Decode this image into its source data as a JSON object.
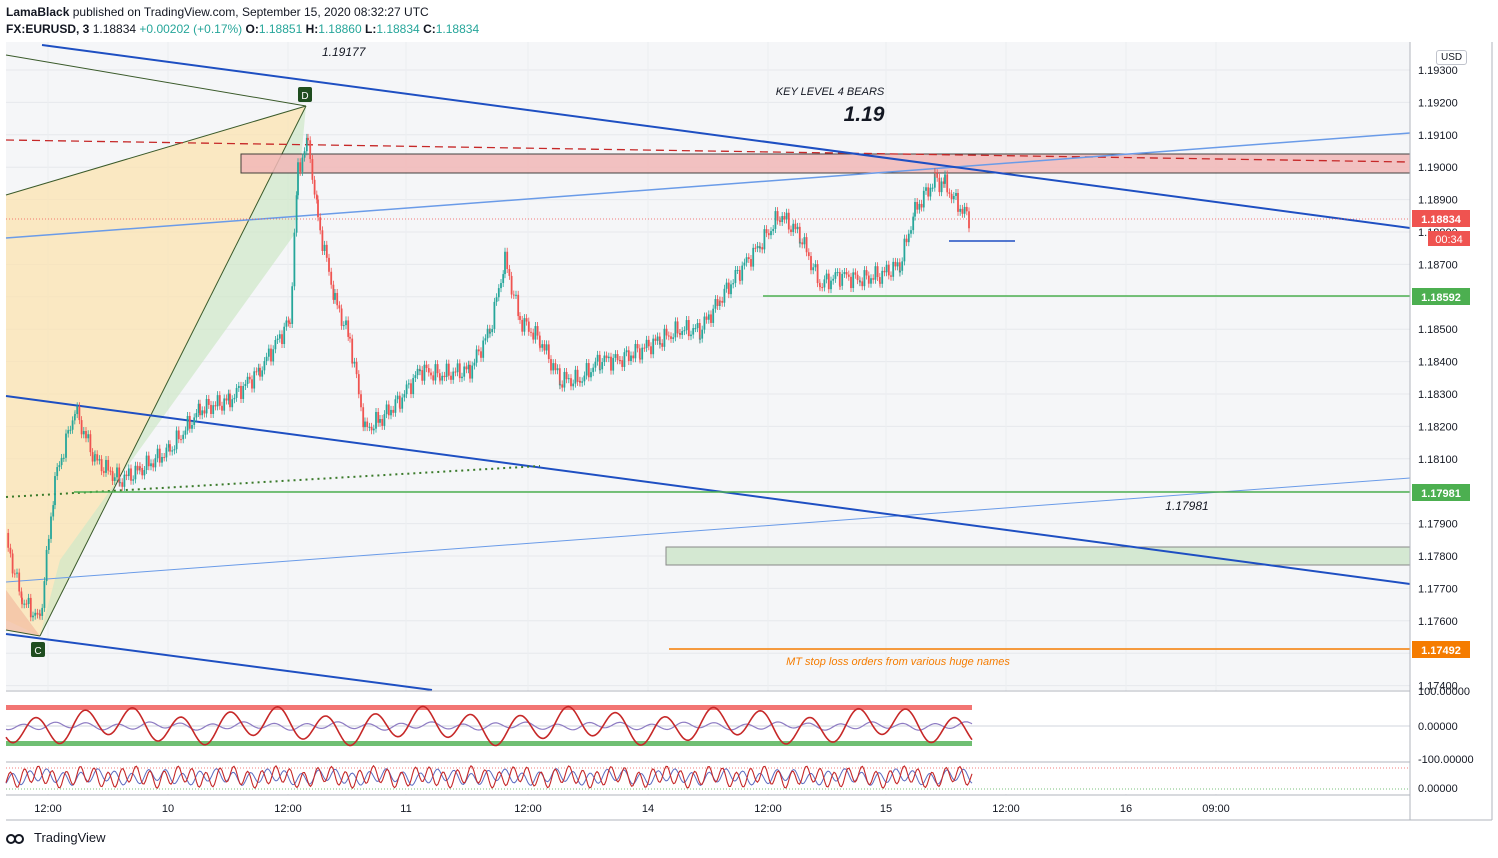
{
  "header": {
    "author": "LamaBlack",
    "published": "published on TradingView.com, September 15, 2020 08:32:27 UTC",
    "symbol": "FX:EURUSD, 3",
    "price": "1.18834",
    "change": "+0.00202 (+0.17%)",
    "o_label": "O:",
    "o_value": "1.18851",
    "h_label": "H:",
    "h_value": "1.18860",
    "l_label": "L:",
    "l_value": "1.18834",
    "c_label": "C:",
    "c_value": "1.18834"
  },
  "currency": "USD",
  "price_axis": {
    "ticks": [
      "1.19300",
      "1.19200",
      "1.19100",
      "1.19000",
      "1.18900",
      "1.18800",
      "1.18700",
      "1.18600",
      "1.18500",
      "1.18400",
      "1.18300",
      "1.18200",
      "1.18100",
      "1.18000",
      "1.17900",
      "1.17800",
      "1.17700",
      "1.17600",
      "1.17500",
      "1.17400"
    ],
    "current_price": "1.18834",
    "countdown": "00:34",
    "labels": [
      {
        "text": "1.18592",
        "color": "#4caf50"
      },
      {
        "text": "1.17981",
        "color": "#4caf50"
      },
      {
        "text": "1.17492",
        "color": "#f57c00"
      }
    ]
  },
  "time_axis": [
    "12:00",
    "10",
    "12:00",
    "11",
    "12:00",
    "14",
    "12:00",
    "15",
    "12:00",
    "16",
    "09:00"
  ],
  "annotations": {
    "top_high": "1.19177",
    "key_level_title": "KEY LEVEL 4 BEARS",
    "key_level_value": "1.19",
    "level_1797": "1.17981",
    "stop_loss_note": "MT stop loss orders from various huge names",
    "pattern_d": "D",
    "pattern_c": "C"
  },
  "osc1_axis": [
    "100.00000",
    "0.00000",
    "-100.00000"
  ],
  "osc2_axis": [
    "0.00000"
  ],
  "footer": {
    "brand": "TradingView"
  },
  "colors": {
    "up": "#26a69a",
    "down": "#ef5350",
    "channel": "#1e4fc2",
    "support": "#4caf50",
    "stop": "#f57c00",
    "resistance_zone": "#f5b7b7"
  }
}
